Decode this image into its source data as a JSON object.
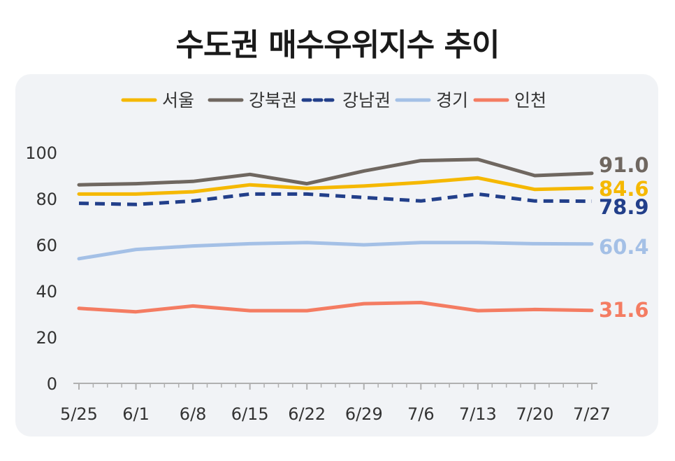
{
  "title": "수도권 매수우위지수 추이",
  "chart_data": {
    "type": "line",
    "title": "수도권 매수우위지수 추이",
    "categories": [
      "5/25",
      "6/1",
      "6/8",
      "6/15",
      "6/22",
      "6/29",
      "7/6",
      "7/13",
      "7/20",
      "7/27"
    ],
    "y_ticks": [
      "0",
      "20",
      "40",
      "60",
      "80",
      "100"
    ],
    "ylim": [
      0,
      100
    ],
    "grid": false,
    "legend_position": "top",
    "series": [
      {
        "name": "서울",
        "color": "#f5b800",
        "dash": false,
        "end_label": "84.6",
        "values": [
          82,
          82,
          83,
          86,
          84.5,
          85.5,
          87,
          89,
          84,
          84.6
        ]
      },
      {
        "name": "강북권",
        "color": "#6f6760",
        "dash": false,
        "end_label": "91.0",
        "values": [
          86,
          86.5,
          87.5,
          90.5,
          86.5,
          92,
          96.5,
          97,
          90,
          91.0
        ]
      },
      {
        "name": "강남권",
        "color": "#223f8a",
        "dash": true,
        "end_label": "78.9",
        "values": [
          78,
          77.5,
          79,
          82,
          82,
          80.5,
          79,
          82,
          79,
          78.9
        ]
      },
      {
        "name": "경기",
        "color": "#a4c0e6",
        "dash": false,
        "end_label": "60.4",
        "values": [
          54,
          58,
          59.5,
          60.5,
          61,
          60,
          61,
          61,
          60.5,
          60.4
        ]
      },
      {
        "name": "인천",
        "color": "#f47c62",
        "dash": false,
        "end_label": "31.6",
        "values": [
          32.5,
          31,
          33.5,
          31.5,
          31.5,
          34.5,
          35,
          31.5,
          32,
          31.6
        ]
      }
    ]
  }
}
